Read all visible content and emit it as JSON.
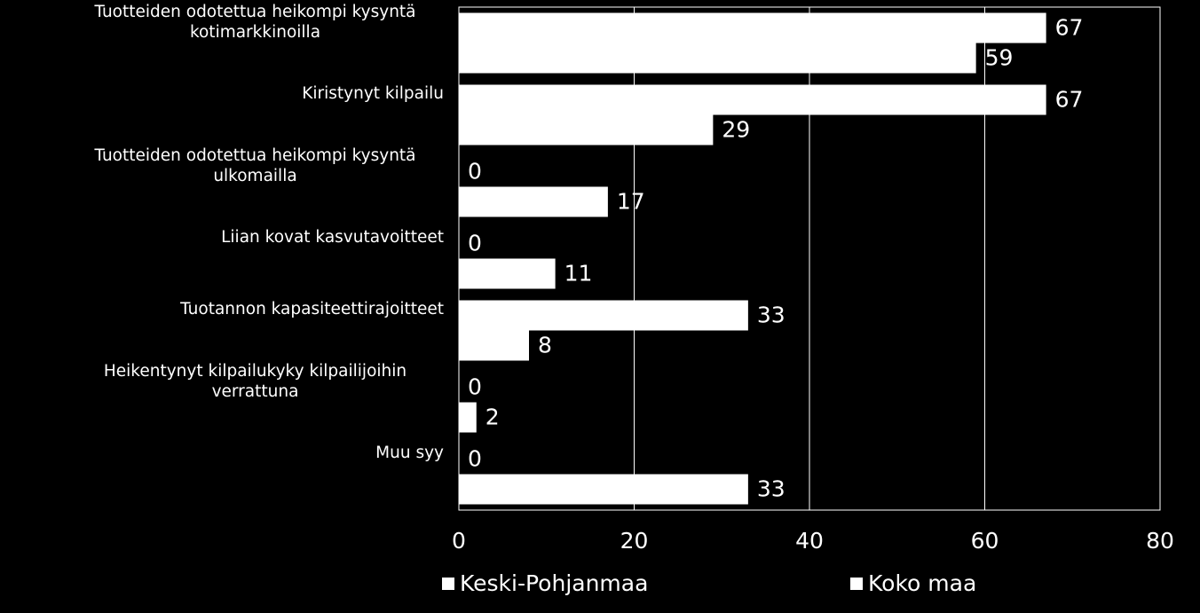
{
  "chart_data": {
    "type": "bar",
    "orientation": "horizontal",
    "categories": [
      "Tuotteiden odotettua heikompi kysyntä kotimarkkinoilla",
      "Kiristynyt kilpailu",
      "Tuotteiden odotettua heikompi kysyntä ulkomailla",
      "Liian kovat kasvutavoitteet",
      "Tuotannon kapasiteettirajoitteet",
      "Heikentynyt kilpailukyky kilpailijoihin verrattuna",
      "Muu syy"
    ],
    "series": [
      {
        "name": "Keski-Pohjanmaa",
        "color": "#ffffff",
        "values": [
          67,
          67,
          0,
          0,
          33,
          0,
          0
        ]
      },
      {
        "name": "Koko maa",
        "color": "#ffffff",
        "values": [
          59,
          29,
          17,
          11,
          8,
          2,
          33
        ]
      }
    ],
    "xlim": [
      0,
      80
    ],
    "xticks": [
      0,
      20,
      40,
      60,
      80
    ],
    "grid": true,
    "legend": "bottom"
  }
}
